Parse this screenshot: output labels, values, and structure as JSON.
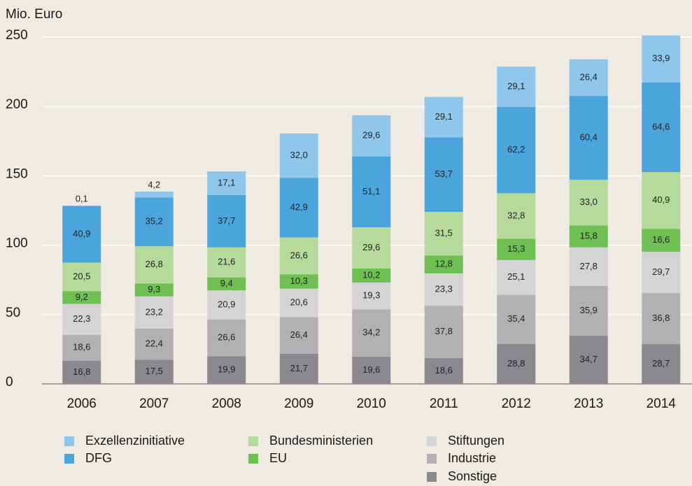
{
  "chart_data": {
    "type": "stacked_bar",
    "y_label": "Mio. Euro",
    "categories": [
      "2006",
      "2007",
      "2008",
      "2009",
      "2010",
      "2011",
      "2012",
      "2013",
      "2014"
    ],
    "series": [
      {
        "name": "Sonstige",
        "color": "#8a8a8e",
        "values": [
          16.8,
          17.5,
          19.9,
          21.7,
          19.6,
          18.6,
          28.8,
          34.7,
          28.7
        ],
        "value_labels": [
          "16,8",
          "17,5",
          "19,9",
          "21,7",
          "19,6",
          "18,6",
          "28,8",
          "34,7",
          "28,7"
        ]
      },
      {
        "name": "Industrie",
        "color": "#b1b1b4",
        "values": [
          18.6,
          22.4,
          26.6,
          26.4,
          34.2,
          37.8,
          35.4,
          35.9,
          36.8
        ],
        "value_labels": [
          "18,6",
          "22,4",
          "26,6",
          "26,4",
          "34,2",
          "37,8",
          "35,4",
          "35,9",
          "36,8"
        ]
      },
      {
        "name": "Stiftungen",
        "color": "#d4d4d4",
        "values": [
          22.3,
          23.2,
          20.9,
          20.6,
          19.3,
          23.3,
          25.1,
          27.8,
          29.7
        ],
        "value_labels": [
          "22,3",
          "23,2",
          "20,9",
          "20,6",
          "19,3",
          "23,3",
          "25,1",
          "27,8",
          "29,7"
        ]
      },
      {
        "name": "EU",
        "color": "#6fc053",
        "values": [
          9.2,
          9.3,
          9.4,
          10.3,
          10.2,
          12.8,
          15.3,
          15.8,
          16.6
        ],
        "value_labels": [
          "9,2",
          "9,3",
          "9,4",
          "10,3",
          "10,2",
          "12,8",
          "15,3",
          "15,8",
          "16,6"
        ]
      },
      {
        "name": "Bundesministerien",
        "color": "#b6da9c",
        "values": [
          20.5,
          26.8,
          21.6,
          26.6,
          29.6,
          31.5,
          32.8,
          33.0,
          40.9
        ],
        "value_labels": [
          "20,5",
          "26,8",
          "21,6",
          "26,6",
          "29,6",
          "31,5",
          "32,8",
          "33,0",
          "40,9"
        ]
      },
      {
        "name": "DFG",
        "color": "#4ca4dc",
        "values": [
          40.9,
          35.2,
          37.7,
          42.9,
          51.1,
          53.7,
          62.2,
          60.4,
          64.6
        ],
        "value_labels": [
          "40,9",
          "35,2",
          "37,7",
          "42,9",
          "51,1",
          "53,7",
          "62,2",
          "60,4",
          "64,6"
        ]
      },
      {
        "name": "Exzellenzinitiative",
        "color": "#8ec7eb",
        "values": [
          0.1,
          4.2,
          17.1,
          32.0,
          29.6,
          29.1,
          29.1,
          26.4,
          33.9
        ],
        "value_labels": [
          "0,1",
          "4,2",
          "17,1",
          "32,0",
          "29,6",
          "29,1",
          "29,1",
          "26,4",
          "33,9"
        ]
      }
    ],
    "ylim": [
      0,
      250
    ],
    "yticks": [
      0,
      50,
      100,
      150,
      200,
      250
    ],
    "grid": true
  }
}
